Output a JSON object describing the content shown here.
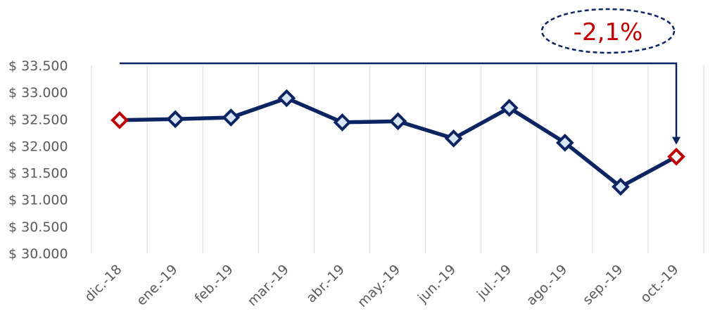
{
  "chart_data": {
    "type": "line",
    "categories": [
      "dic.-18",
      "ene.-19",
      "feb.-19",
      "mar.-19",
      "abr.-19",
      "may.-19",
      "jun.-19",
      "jul.-19",
      "ago.-19",
      "sep.-19",
      "oct.-19"
    ],
    "series": [
      {
        "values": [
          32480,
          32500,
          32530,
          32890,
          32440,
          32460,
          32140,
          32710,
          32060,
          31240,
          31800
        ]
      }
    ],
    "ylim": [
      30000,
      33500
    ],
    "yticks": [
      "$ 30.000",
      "$ 30.500",
      "$ 31.000",
      "$ 31.500",
      "$ 32.000",
      "$ 32.500",
      "$ 33.000",
      "$ 33.500"
    ],
    "ytick_values": [
      30000,
      30500,
      31000,
      31500,
      32000,
      32500,
      33000,
      33500
    ],
    "grid": "vertical",
    "highlighted_points": [
      "dic.-18",
      "oct.-19"
    ],
    "annotation": {
      "text": "-2,1%",
      "from": "dic.-18",
      "to": "oct.-19"
    },
    "colors": {
      "line": "#0c2461",
      "marker_fill": "#d6e6f5",
      "highlight": "#c00000",
      "grid": "#d9d9d9",
      "annotation_text": "#c00000",
      "annotation_border": "#0c2461"
    }
  }
}
